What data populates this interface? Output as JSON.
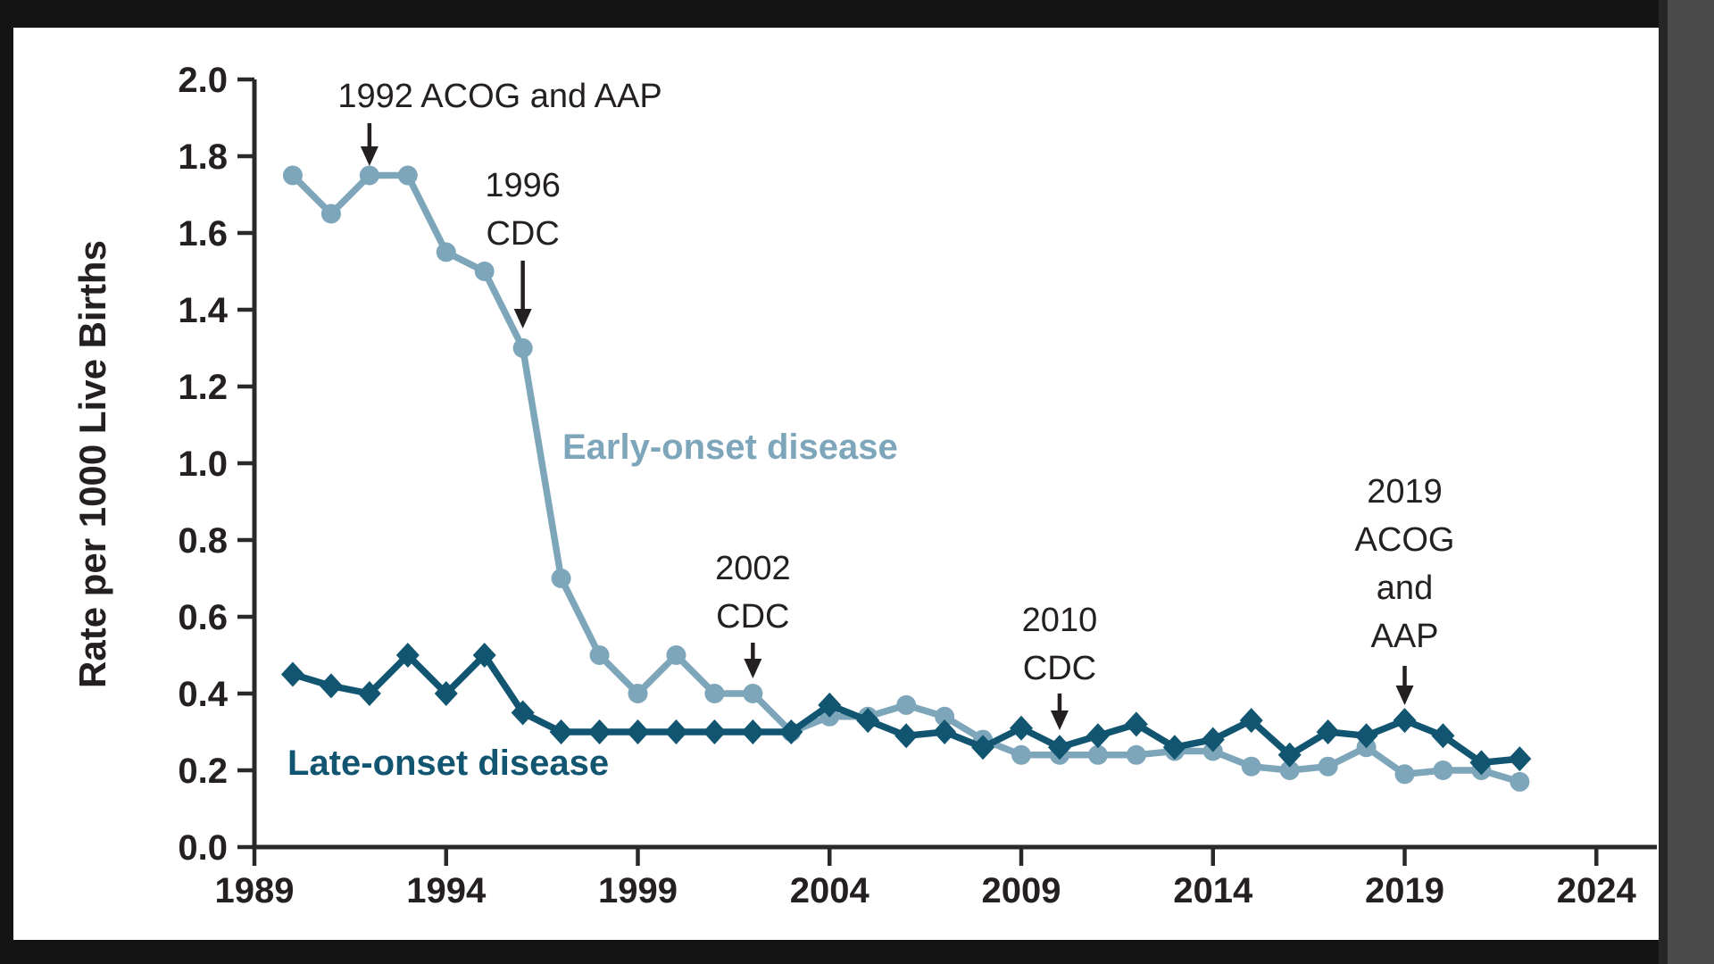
{
  "frame": {
    "outer_bg": "#141414",
    "panel_bg": "#ffffff",
    "right_strip": "#4a4a4a",
    "right_strip_edge": "#262626"
  },
  "chart_data": {
    "type": "line",
    "title": "",
    "ylabel": "Rate per 1000 Live Births",
    "xlabel": "",
    "ylim": [
      0.0,
      2.0
    ],
    "ytick_step": 0.2,
    "xlim": [
      1989,
      2024
    ],
    "xticks": [
      1989,
      1994,
      1999,
      2004,
      2009,
      2014,
      2019,
      2024
    ],
    "grid": false,
    "legend_position": "inline-labels",
    "text_color": "#242021",
    "annotation_color": "#242021",
    "axis_color": "#2b2829",
    "x": [
      1990,
      1991,
      1992,
      1993,
      1994,
      1995,
      1996,
      1997,
      1998,
      1999,
      2000,
      2001,
      2002,
      2003,
      2004,
      2005,
      2006,
      2007,
      2008,
      2009,
      2010,
      2011,
      2012,
      2013,
      2014,
      2015,
      2016,
      2017,
      2018,
      2019,
      2020,
      2021,
      2022
    ],
    "series": [
      {
        "name": "Early-onset disease",
        "marker": "circle",
        "color": "#7EA6BB",
        "values": [
          1.75,
          1.65,
          1.75,
          1.75,
          1.55,
          1.5,
          1.3,
          0.7,
          0.5,
          0.4,
          0.5,
          0.4,
          0.4,
          0.3,
          0.34,
          0.34,
          0.37,
          0.34,
          0.28,
          0.24,
          0.24,
          0.24,
          0.24,
          0.25,
          0.25,
          0.21,
          0.2,
          0.21,
          0.26,
          0.19,
          0.2,
          0.2,
          0.17
        ]
      },
      {
        "name": "Late-onset disease",
        "marker": "diamond",
        "color": "#115571",
        "values": [
          0.45,
          0.42,
          0.4,
          0.5,
          0.4,
          0.5,
          0.35,
          0.3,
          0.3,
          0.3,
          0.3,
          0.3,
          0.3,
          0.3,
          0.37,
          0.33,
          0.29,
          0.3,
          0.26,
          0.31,
          0.26,
          0.29,
          0.32,
          0.26,
          0.28,
          0.33,
          0.24,
          0.3,
          0.29,
          0.33,
          0.29,
          0.22,
          0.23
        ]
      }
    ],
    "series_labels": [
      {
        "text": "Early-onset disease",
        "series": 0
      },
      {
        "text": "Late-onset disease",
        "series": 1
      }
    ],
    "annotations": [
      {
        "id": "acog-aap-1992",
        "lines": [
          "1992 ACOG and AAP"
        ],
        "year": 1992
      },
      {
        "id": "cdc-1996",
        "lines": [
          "1996",
          "CDC"
        ],
        "year": 1996
      },
      {
        "id": "cdc-2002",
        "lines": [
          "2002",
          "CDC"
        ],
        "year": 2002
      },
      {
        "id": "cdc-2010",
        "lines": [
          "2010",
          "CDC"
        ],
        "year": 2010
      },
      {
        "id": "acog-aap-2019",
        "lines": [
          "2019",
          "ACOG",
          "and",
          "AAP"
        ],
        "year": 2019
      }
    ]
  }
}
